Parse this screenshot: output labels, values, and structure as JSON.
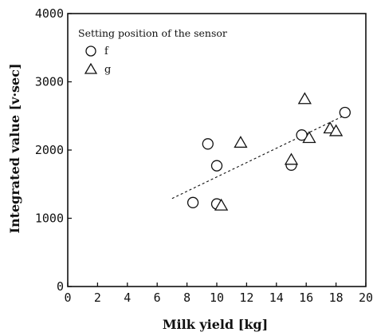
{
  "chart_data": {
    "type": "scatter",
    "title": "",
    "xlabel": "Milk yield [kg]",
    "ylabel": "Integrated value [v·sec]",
    "xlim": [
      0,
      20
    ],
    "ylim": [
      0,
      4000
    ],
    "x_ticks": [
      0,
      2,
      4,
      6,
      8,
      10,
      12,
      14,
      16,
      18,
      20
    ],
    "y_ticks": [
      0,
      1000,
      2000,
      3000,
      4000
    ],
    "grid": false,
    "legend": {
      "title": "Setting position of the sensor",
      "placement": "top-left"
    },
    "series": [
      {
        "name": "f",
        "marker": "circle",
        "points": [
          {
            "x": 8.4,
            "y": 1230
          },
          {
            "x": 9.4,
            "y": 2090
          },
          {
            "x": 10.0,
            "y": 1770
          },
          {
            "x": 10.0,
            "y": 1210
          },
          {
            "x": 15.0,
            "y": 1780
          },
          {
            "x": 15.7,
            "y": 2220
          },
          {
            "x": 18.6,
            "y": 2550
          }
        ]
      },
      {
        "name": "g",
        "marker": "triangle",
        "points": [
          {
            "x": 10.3,
            "y": 1180
          },
          {
            "x": 11.6,
            "y": 2100
          },
          {
            "x": 15.0,
            "y": 1850
          },
          {
            "x": 15.9,
            "y": 2740
          },
          {
            "x": 16.2,
            "y": 2170
          },
          {
            "x": 17.6,
            "y": 2310
          },
          {
            "x": 18.0,
            "y": 2270
          }
        ]
      }
    ],
    "trendline": {
      "style": "dashed",
      "from": {
        "x": 7.0,
        "y": 1290
      },
      "to": {
        "x": 18.5,
        "y": 2500
      }
    }
  }
}
